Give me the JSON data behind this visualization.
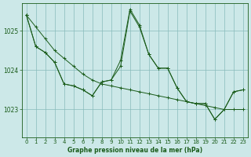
{
  "xlabel": "Graphe pression niveau de la mer (hPa)",
  "background_color": "#cce8e8",
  "grid_color": "#88bbbb",
  "line_color": "#1a5c1a",
  "x_ticks": [
    0,
    1,
    2,
    3,
    4,
    5,
    6,
    7,
    8,
    9,
    10,
    11,
    12,
    13,
    14,
    15,
    16,
    17,
    18,
    19,
    20,
    21,
    22,
    23
  ],
  "ylim": [
    1022.3,
    1025.7
  ],
  "yticks": [
    1023,
    1024,
    1025
  ],
  "series": {
    "line1": {
      "x": [
        0,
        1,
        2,
        3,
        4,
        5,
        6,
        7,
        8,
        9,
        10,
        11,
        12,
        13,
        14,
        15,
        16,
        17,
        18,
        19,
        20,
        21,
        22,
        23
      ],
      "y": [
        1025.4,
        1025.1,
        1024.8,
        1024.5,
        1024.3,
        1024.1,
        1023.9,
        1023.75,
        1023.65,
        1023.6,
        1023.55,
        1023.5,
        1023.45,
        1023.4,
        1023.35,
        1023.3,
        1023.25,
        1023.2,
        1023.15,
        1023.1,
        1023.05,
        1023.0,
        1023.0,
        1023.0
      ]
    },
    "line2": {
      "x": [
        0,
        1,
        2,
        3,
        4,
        5,
        6,
        7,
        8,
        9,
        10,
        11,
        12,
        13,
        14,
        15,
        16,
        17,
        18,
        19,
        20,
        21,
        22,
        23
      ],
      "y": [
        1025.4,
        1024.6,
        1024.45,
        1024.2,
        1023.65,
        1023.6,
        1023.5,
        1023.35,
        1023.7,
        1023.75,
        1024.1,
        1025.5,
        1025.1,
        1024.4,
        1024.05,
        1024.05,
        1023.55,
        1023.2,
        1023.15,
        1023.15,
        1022.75,
        1023.0,
        1023.45,
        1023.5
      ]
    },
    "line3": {
      "x": [
        0,
        1,
        2,
        3,
        4,
        5,
        6,
        7,
        8,
        9,
        10,
        11,
        12,
        13,
        14,
        15,
        16,
        17,
        18,
        19,
        20,
        21,
        22,
        23
      ],
      "y": [
        1025.4,
        1024.6,
        1024.45,
        1024.2,
        1023.65,
        1023.6,
        1023.5,
        1023.35,
        1023.7,
        1023.75,
        1024.25,
        1025.55,
        1025.15,
        1024.4,
        1024.05,
        1024.05,
        1023.55,
        1023.2,
        1023.15,
        1023.15,
        1022.75,
        1023.0,
        1023.45,
        1023.5
      ]
    }
  }
}
